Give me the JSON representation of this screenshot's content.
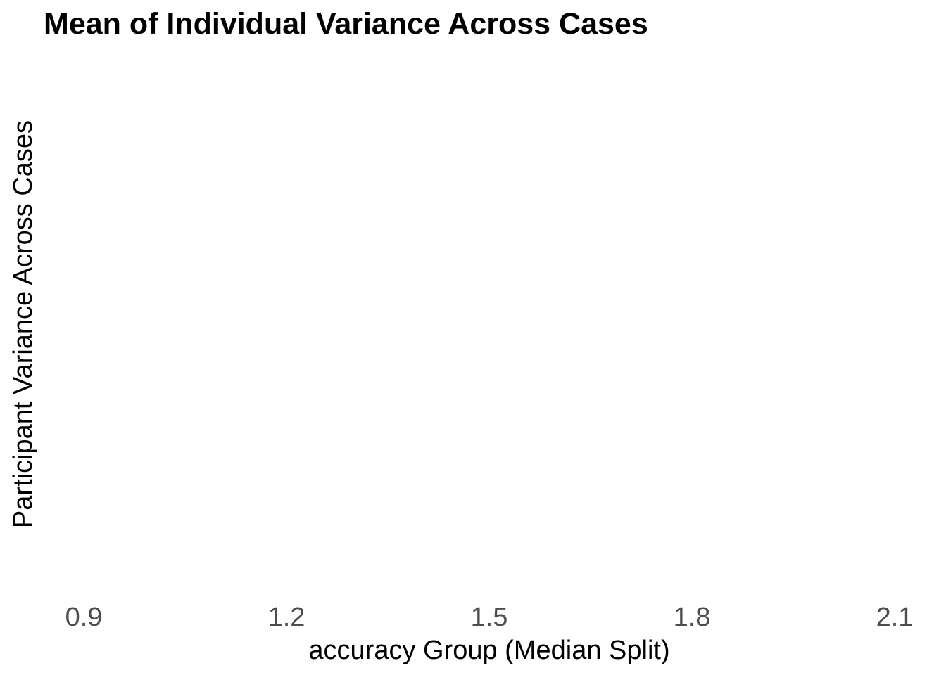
{
  "chart_data": {
    "type": "scatter",
    "title": "Mean of Individual Variance Across Cases",
    "xlabel": "accuracy Group (Median Split)",
    "ylabel": "Participant Variance Across Cases",
    "x_ticks": [
      "0.9",
      "1.2",
      "1.5",
      "1.8",
      "2.1"
    ],
    "xlim": [
      0.9,
      2.1
    ],
    "y_ticks": [],
    "grid": false,
    "series": []
  }
}
